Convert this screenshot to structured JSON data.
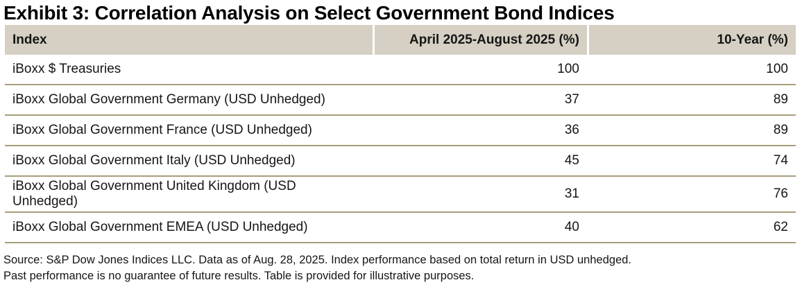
{
  "chart_data": {
    "type": "table",
    "title": "Exhibit 3: Correlation Analysis on Select Government Bond Indices",
    "columns": [
      "Index",
      "April 2025-August 2025 (%)",
      "10-Year (%)"
    ],
    "rows": [
      {
        "index": "iBoxx $ Treasuries",
        "april_aug_2025_pct": "100",
        "ten_year_pct": "100"
      },
      {
        "index": "iBoxx Global Government Germany (USD Unhedged)",
        "april_aug_2025_pct": "37",
        "ten_year_pct": "89"
      },
      {
        "index": "iBoxx Global Government France (USD Unhedged)",
        "april_aug_2025_pct": "36",
        "ten_year_pct": "89"
      },
      {
        "index": "iBoxx Global Government Italy (USD Unhedged)",
        "april_aug_2025_pct": "45",
        "ten_year_pct": "74"
      },
      {
        "index": "iBoxx Global Government United Kingdom (USD Unhedged)",
        "april_aug_2025_pct": "31",
        "ten_year_pct": "76"
      },
      {
        "index": "iBoxx Global Government EMEA (USD Unhedged)",
        "april_aug_2025_pct": "40",
        "ten_year_pct": "62"
      }
    ]
  },
  "footnote": {
    "line1": "Source: S&P Dow Jones Indices LLC. Data as of Aug. 28, 2025. Index performance based on total return in USD unhedged.",
    "line2": "Past performance is no guarantee of future results. Table is provided for illustrative purposes."
  },
  "colors": {
    "header_bg": "#d5d0c3",
    "row_border": "#a79d7b",
    "text": "#151515"
  }
}
